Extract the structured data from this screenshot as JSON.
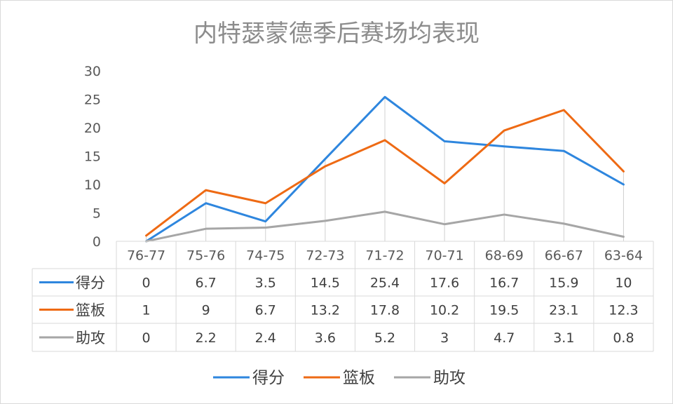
{
  "chart_data": {
    "type": "line",
    "title": "内特瑟蒙德季后赛场均表现",
    "categories": [
      "76-77",
      "75-76",
      "74-75",
      "72-73",
      "71-72",
      "70-71",
      "68-69",
      "66-67",
      "63-64"
    ],
    "series": [
      {
        "name": "得分",
        "color": "#2e86de",
        "values": [
          0,
          6.7,
          3.5,
          14.5,
          25.4,
          17.6,
          16.7,
          15.9,
          10
        ]
      },
      {
        "name": "篮板",
        "color": "#ee6a14",
        "values": [
          1,
          9,
          6.7,
          13.2,
          17.8,
          10.2,
          19.5,
          23.1,
          12.3
        ]
      },
      {
        "name": "助攻",
        "color": "#a6a6a6",
        "values": [
          0,
          2.2,
          2.4,
          3.6,
          5.2,
          3,
          4.7,
          3.1,
          0.8
        ]
      }
    ],
    "ylim": [
      0,
      30
    ],
    "yticks": [
      0,
      5,
      10,
      15,
      20,
      25,
      30
    ],
    "data_table": true,
    "legend": "bottom",
    "grid": false
  }
}
